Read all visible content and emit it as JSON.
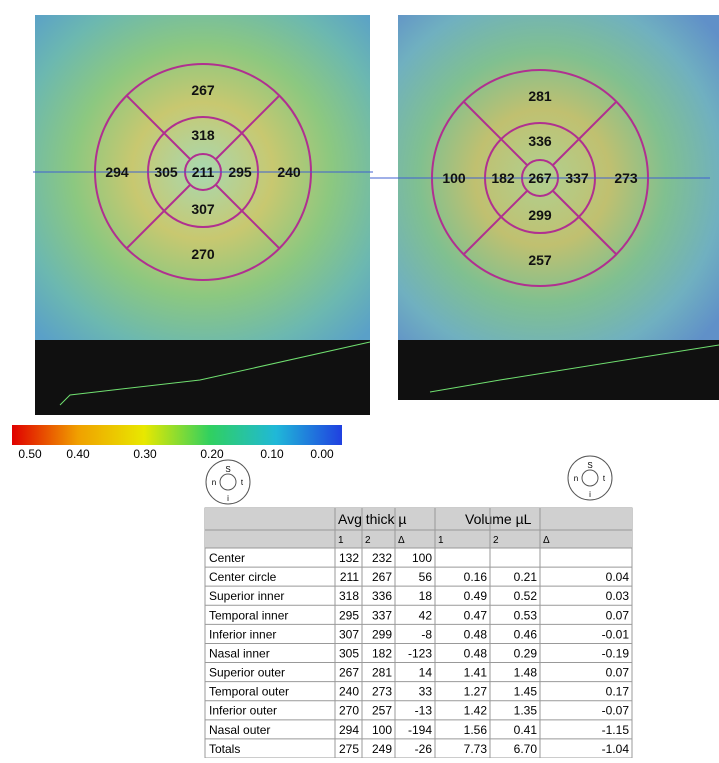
{
  "maps": [
    {
      "center": 211,
      "superior_inner": 318,
      "temporal_inner": 295,
      "inferior_inner": 307,
      "nasal_inner": 305,
      "superior_outer": 267,
      "temporal_outer": 240,
      "inferior_outer": 270,
      "nasal_outer": 294
    },
    {
      "center": 267,
      "superior_inner": 336,
      "temporal_inner": 337,
      "inferior_inner": 299,
      "nasal_inner": 182,
      "superior_outer": 281,
      "temporal_outer": 273,
      "inferior_outer": 257,
      "nasal_outer": 100
    }
  ],
  "scale_labels": [
    "0.50",
    "0.40",
    "0.30",
    "0.20",
    "0.10",
    "0.00"
  ],
  "sector_key": {
    "top": "S",
    "left": "n",
    "right": "t",
    "bottom": "i"
  },
  "table": {
    "group_headers": [
      "Avg thick µ",
      "Volume µL"
    ],
    "sub_headers": [
      "1",
      "2",
      "Δ",
      "1",
      "2",
      "Δ"
    ],
    "rows": [
      [
        "Center",
        "132",
        "232",
        "100"
      ],
      [
        "Center circle",
        "211",
        "267",
        "56",
        "0.16",
        "0.21",
        "0.04"
      ],
      [
        "Superior inner",
        "318",
        "336",
        "18",
        "0.49",
        "0.52",
        "0.03"
      ],
      [
        "Temporal inner",
        "295",
        "337",
        "42",
        "0.47",
        "0.53",
        "0.07"
      ],
      [
        "Inferior inner",
        "307",
        "299",
        "-8",
        "0.48",
        "0.46",
        "-0.01"
      ],
      [
        "Nasal inner",
        "305",
        "182",
        "-123",
        "0.48",
        "0.29",
        "-0.19"
      ],
      [
        "Superior outer",
        "267",
        "281",
        "14",
        "1.41",
        "1.48",
        "0.07"
      ],
      [
        "Temporal outer",
        "240",
        "273",
        "33",
        "1.27",
        "1.45",
        "0.17"
      ],
      [
        "Inferior outer",
        "270",
        "257",
        "-13",
        "1.42",
        "1.35",
        "-0.07"
      ],
      [
        "Nasal outer",
        "294",
        "100",
        "-194",
        "1.56",
        "0.41",
        "-1.15"
      ],
      [
        "Totals",
        "275",
        "249",
        "-26",
        "7.73",
        "6.70",
        "-1.04"
      ]
    ]
  }
}
